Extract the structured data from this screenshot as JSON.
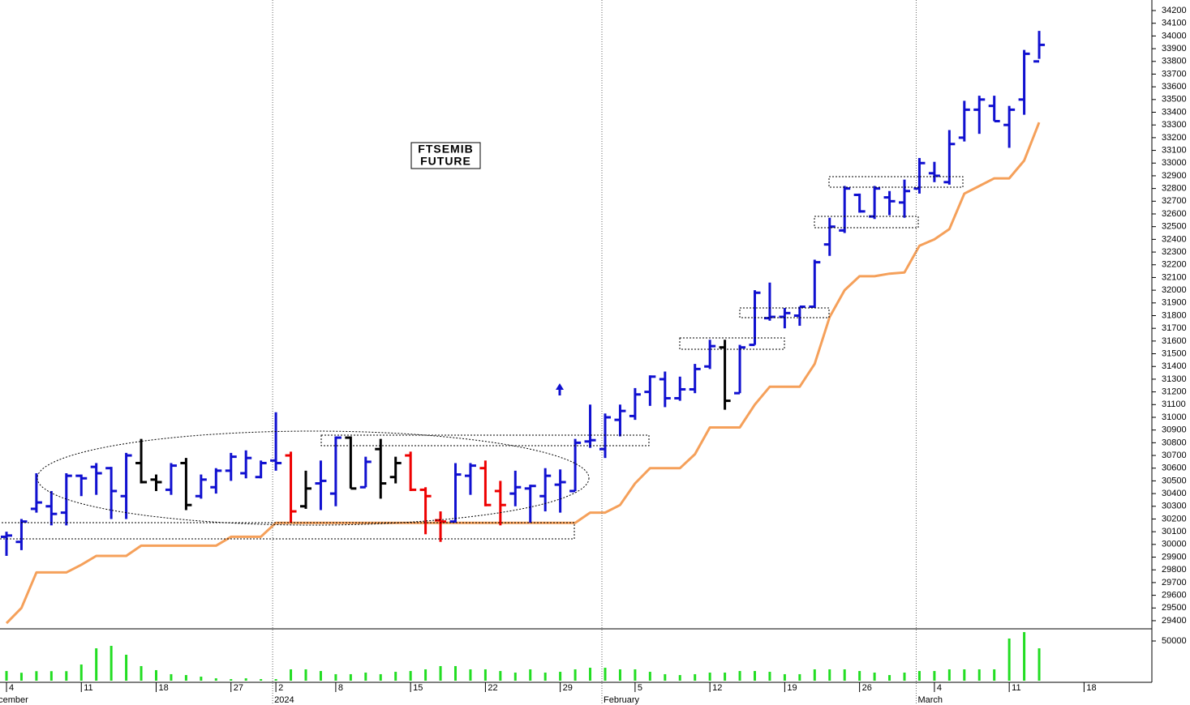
{
  "chart_data": [
    {
      "type": "ohlc",
      "annotation": [
        "FTSEMIB",
        "FUTURE"
      ],
      "categories": [
        "4",
        null,
        null,
        null,
        null,
        "11",
        null,
        null,
        null,
        null,
        "18",
        null,
        null,
        null,
        null,
        "27",
        null,
        null,
        "2",
        null,
        null,
        null,
        "8",
        null,
        null,
        null,
        null,
        "15",
        null,
        null,
        null,
        null,
        "22",
        null,
        null,
        null,
        null,
        "29",
        null,
        null,
        null,
        null,
        "5",
        null,
        null,
        null,
        null,
        "12",
        null,
        null,
        null,
        null,
        "19",
        null,
        null,
        null,
        null,
        "26",
        null,
        null,
        null,
        null,
        "4",
        null,
        null,
        null,
        null,
        "11",
        null,
        null,
        null,
        null,
        "18"
      ],
      "period_labels": [
        "ecember",
        "2024",
        "February",
        "March"
      ],
      "open": [
        30060,
        30020,
        30280,
        30300,
        30250,
        30540,
        30610,
        30600,
        30380,
        30640,
        30510,
        30430,
        30640,
        30380,
        30450,
        30580,
        30560,
        30530,
        30660,
        30700,
        30300,
        30480,
        30400,
        30840,
        30450,
        30750,
        30530,
        30700,
        30430,
        30190,
        30180,
        30540,
        30600,
        30420,
        30400,
        30440,
        30380,
        30470,
        30420,
        30810,
        30750,
        30980,
        31010,
        31200,
        31300,
        31150,
        31220,
        31400,
        31550,
        31190,
        31570,
        31780,
        31790,
        31800,
        31870,
        32360,
        32470,
        32750,
        32580,
        32730,
        32690,
        32800,
        32920,
        32850,
        33200,
        33420,
        33450,
        33300,
        33500,
        33800,
        null,
        null,
        null
      ],
      "high": [
        30100,
        30200,
        30560,
        30420,
        30560,
        30550,
        30640,
        30610,
        30720,
        30830,
        30550,
        30640,
        30680,
        30550,
        30600,
        30720,
        30740,
        30660,
        31040,
        30730,
        30580,
        30660,
        30850,
        30850,
        30690,
        30830,
        30690,
        30730,
        30450,
        30260,
        30640,
        30640,
        30660,
        30500,
        30580,
        30470,
        30600,
        30590,
        30830,
        31100,
        31030,
        31100,
        31230,
        31330,
        31360,
        31320,
        31420,
        31610,
        31610,
        31570,
        32000,
        32060,
        31860,
        31870,
        32240,
        32570,
        32820,
        32760,
        32820,
        32780,
        32870,
        33040,
        33010,
        33260,
        33490,
        33530,
        33530,
        33450,
        33890,
        34040,
        null,
        null,
        null
      ],
      "low": [
        29910,
        29955,
        30250,
        30150,
        30150,
        30380,
        30390,
        30200,
        30200,
        30480,
        30420,
        30390,
        30270,
        30360,
        30400,
        30500,
        30520,
        30520,
        30580,
        30170,
        30280,
        30270,
        30300,
        30440,
        30450,
        30360,
        30480,
        30420,
        30080,
        30020,
        30170,
        30390,
        30300,
        30150,
        30300,
        30170,
        30260,
        30250,
        30420,
        30760,
        30680,
        30850,
        30980,
        31090,
        31080,
        31130,
        31190,
        31380,
        31060,
        31190,
        31570,
        31760,
        31700,
        31720,
        31860,
        32270,
        32450,
        32610,
        32560,
        32590,
        32570,
        32760,
        32850,
        32830,
        33170,
        33230,
        33330,
        33120,
        33380,
        33820,
        null,
        null,
        null
      ],
      "close": [
        30070,
        30180,
        30330,
        30240,
        30540,
        30520,
        30560,
        30420,
        30700,
        30490,
        30490,
        30620,
        30310,
        30510,
        30580,
        30690,
        30680,
        30640,
        30640,
        30260,
        30440,
        30500,
        30840,
        30440,
        30650,
        30480,
        30640,
        30430,
        30380,
        30180,
        30550,
        30620,
        30310,
        30310,
        30450,
        30460,
        30540,
        30490,
        30800,
        30820,
        31000,
        31050,
        31180,
        31320,
        31150,
        31220,
        31380,
        31560,
        31130,
        31550,
        31980,
        31790,
        31820,
        31870,
        32220,
        32500,
        32800,
        32620,
        32800,
        32700,
        32780,
        33000,
        32900,
        33150,
        33420,
        33500,
        33330,
        33420,
        33860,
        33930,
        null,
        null,
        null
      ],
      "bar_colors": [
        "#1010d0",
        "#1010d0",
        "#1010d0",
        "#1010d0",
        "#1010d0",
        "#1010d0",
        "#1010d0",
        "#1010d0",
        "#1010d0",
        "#000000",
        "#000000",
        "#1010d0",
        "#000000",
        "#1010d0",
        "#1010d0",
        "#1010d0",
        "#1010d0",
        "#1010d0",
        "#1010d0",
        "#ee0000",
        "#000000",
        "#1010d0",
        "#1010d0",
        "#000000",
        "#1010d0",
        "#000000",
        "#000000",
        "#ee0000",
        "#ee0000",
        "#ee0000",
        "#1010d0",
        "#1010d0",
        "#ee0000",
        "#ee0000",
        "#1010d0",
        "#1010d0",
        "#1010d0",
        "#1010d0",
        "#1010d0",
        "#1010d0",
        "#1010d0",
        "#1010d0",
        "#1010d0",
        "#1010d0",
        "#1010d0",
        "#1010d0",
        "#1010d0",
        "#1010d0",
        "#000000",
        "#1010d0",
        "#1010d0",
        "#1010d0",
        "#1010d0",
        "#1010d0",
        "#1010d0",
        "#1010d0",
        "#1010d0",
        "#1010d0",
        "#1010d0",
        "#1010d0",
        "#1010d0",
        "#1010d0",
        "#1010d0",
        "#1010d0",
        "#1010d0",
        "#1010d0",
        "#1010d0",
        "#1010d0",
        "#1010d0",
        "#1010d0",
        null,
        null,
        null
      ],
      "stop_line": {
        "color": "#f5a05a",
        "values": [
          29380,
          29500,
          29780,
          29780,
          29780,
          29840,
          29910,
          29910,
          29910,
          29990,
          29990,
          29990,
          29990,
          29990,
          29990,
          30060,
          30060,
          30060,
          30170,
          30170,
          30170,
          30170,
          30170,
          30170,
          30170,
          30170,
          30170,
          30170,
          30170,
          30170,
          30170,
          30170,
          30170,
          30170,
          30170,
          30170,
          30170,
          30170,
          30170,
          30250,
          30250,
          30310,
          30480,
          30600,
          30600,
          30600,
          30710,
          30920,
          30920,
          30920,
          31100,
          31240,
          31240,
          31240,
          31420,
          31790,
          32000,
          32110,
          32110,
          32130,
          32140,
          32350,
          32400,
          32480,
          32760,
          32820,
          32880,
          32880,
          33020,
          33320,
          null,
          null,
          null
        ]
      },
      "ylim": [
        29336,
        34283
      ],
      "yticks": [
        29400,
        29500,
        29600,
        29700,
        29800,
        29900,
        30000,
        30100,
        30200,
        30300,
        30400,
        30500,
        30600,
        30700,
        30800,
        30900,
        31000,
        31100,
        31200,
        31300,
        31400,
        31500,
        31600,
        31700,
        31800,
        31900,
        32000,
        32100,
        32200,
        32300,
        32400,
        32500,
        32600,
        32700,
        32800,
        32900,
        33000,
        33100,
        33200,
        33300,
        33400,
        33500,
        33600,
        33700,
        33800,
        33900,
        34000,
        34100,
        34200
      ]
    },
    {
      "type": "bar",
      "color": "#22dd22",
      "values": [
        12200,
        10000,
        12000,
        12000,
        12000,
        20400,
        40800,
        43900,
        32700,
        18400,
        13300,
        8200,
        7100,
        5100,
        3000,
        2000,
        3000,
        2000,
        2000,
        14300,
        14300,
        12200,
        8200,
        8200,
        10200,
        8200,
        11200,
        12200,
        14300,
        18400,
        18400,
        14300,
        14300,
        12200,
        10200,
        14300,
        10200,
        11200,
        14300,
        16300,
        16300,
        14300,
        14300,
        11200,
        8200,
        7100,
        8200,
        10200,
        10200,
        12200,
        12200,
        11200,
        8200,
        8200,
        14300,
        14300,
        14300,
        12200,
        10200,
        7100,
        10200,
        12200,
        12200,
        14300,
        14300,
        14300,
        14300,
        53100,
        61200,
        40800,
        null,
        null,
        null
      ],
      "ylim": [
        0,
        64300
      ],
      "yticks": [
        50000
      ]
    }
  ]
}
